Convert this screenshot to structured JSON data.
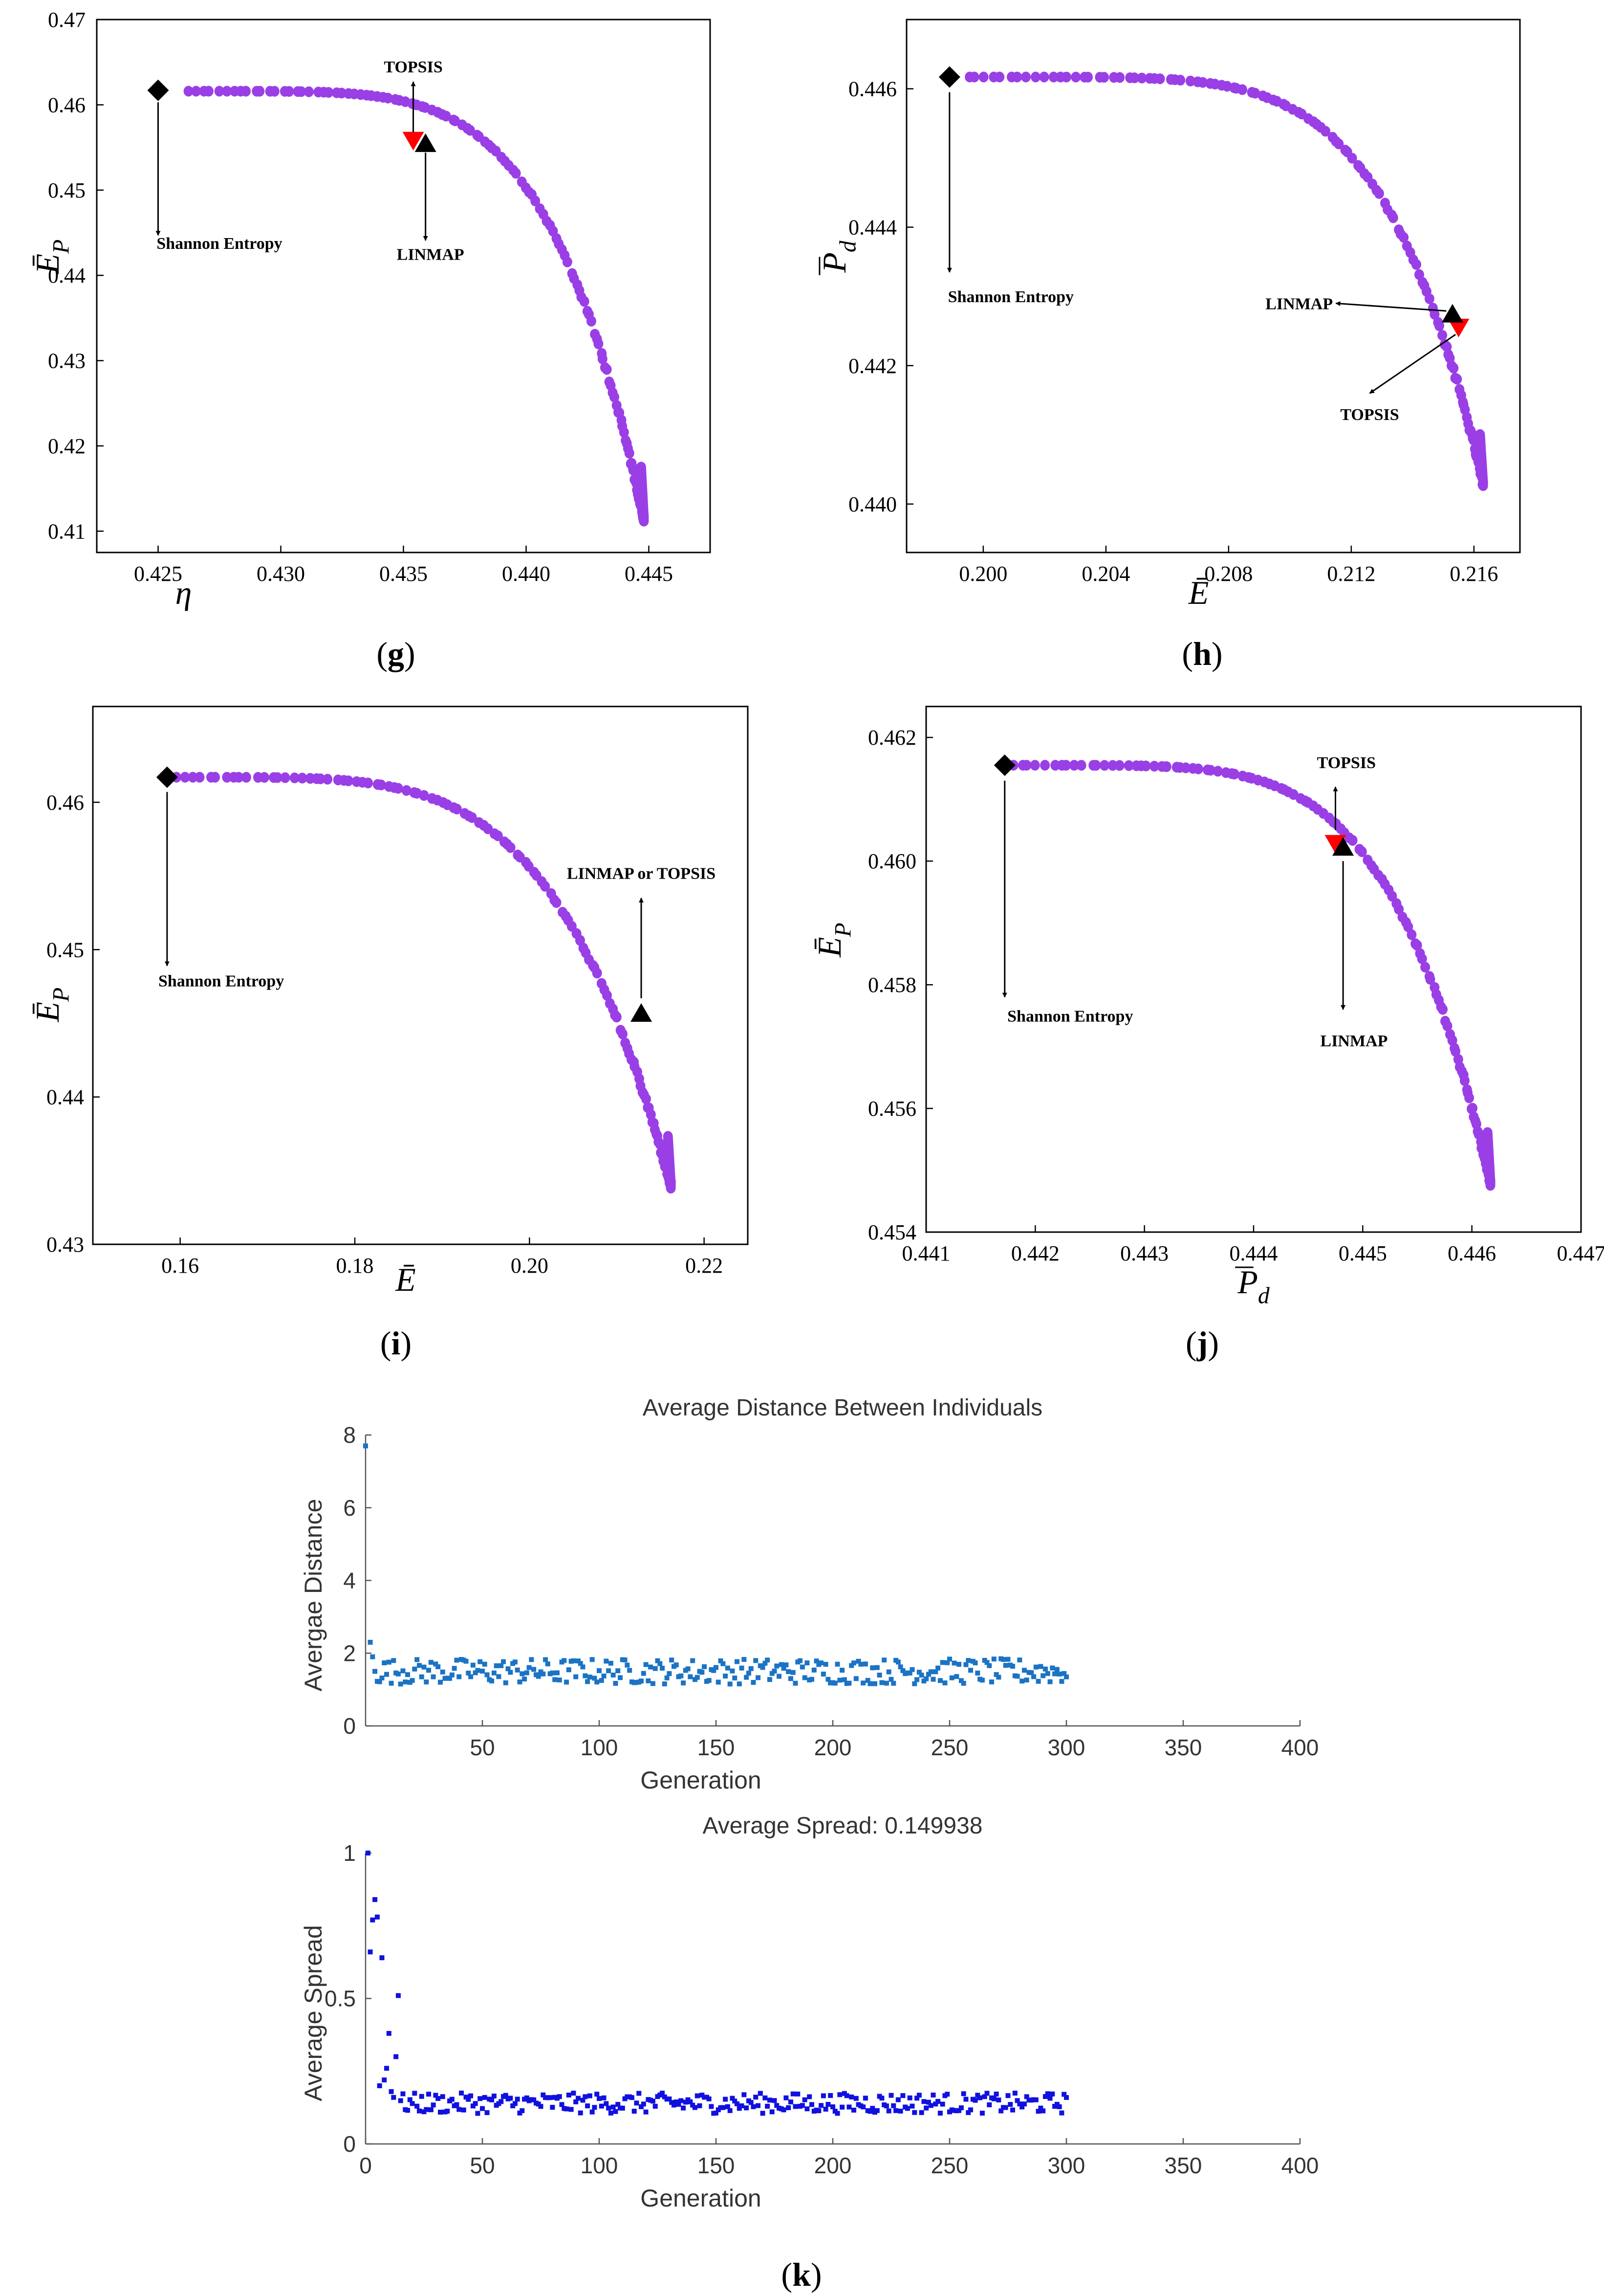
{
  "figure": {
    "colors": {
      "pareto": "#9A3FE6",
      "axis": "#000000",
      "topsis": "#FF0000",
      "linmap": "#000000",
      "shannon": "#000000",
      "ga_avg_distance": "#1B73C4",
      "ga_avg_spread": "#1010E0",
      "ga_axis": "#555555"
    }
  },
  "chart_data": [
    {
      "id": "g",
      "type": "scatter",
      "panel_label": "(g)",
      "xlabel": "η",
      "ylabel": "Ē_P",
      "xlim": [
        0.4225,
        0.4475
      ],
      "ylim": [
        0.4075,
        0.47
      ],
      "x_ticks": [
        "0.425",
        "0.430",
        "0.435",
        "0.440",
        "0.445"
      ],
      "x_tick_values": [
        0.425,
        0.43,
        0.435,
        0.44,
        0.445
      ],
      "y_ticks": [
        "0.41",
        "0.42",
        "0.43",
        "0.44",
        "0.45",
        "0.46",
        "0.47"
      ],
      "y_tick_values": [
        0.41,
        0.42,
        0.43,
        0.44,
        0.45,
        0.46,
        0.47
      ],
      "front": {
        "x_start": 0.4262,
        "x_end": 0.4448,
        "y_start": 0.4616,
        "y_end": 0.4115,
        "curvature": 5.0,
        "n": 130
      },
      "points": {
        "shannon": {
          "x": 0.425,
          "y": 0.4617
        },
        "topsis": {
          "x": 0.4354,
          "y": 0.4558
        },
        "linmap": {
          "x": 0.4359,
          "y": 0.4555
        }
      },
      "annotations": [
        {
          "label": "Shannon Entropy",
          "from": {
            "x": 0.425,
            "y": 0.4603
          },
          "to": {
            "x": 0.425,
            "y": 0.4447
          },
          "text_at": {
            "x": 0.4275,
            "y": 0.4438
          }
        },
        {
          "label": "TOPSIS",
          "from": {
            "x": 0.4354,
            "y": 0.4568
          },
          "to": {
            "x": 0.4354,
            "y": 0.4627
          },
          "text_at": {
            "x": 0.4354,
            "y": 0.4645
          }
        },
        {
          "label": "LINMAP",
          "from": {
            "x": 0.4359,
            "y": 0.4544
          },
          "to": {
            "x": 0.4359,
            "y": 0.4441
          },
          "text_at": {
            "x": 0.4361,
            "y": 0.4425
          }
        }
      ]
    },
    {
      "id": "h",
      "type": "scatter",
      "panel_label": "(h)",
      "xlabel": "Ē",
      "ylabel": "P̄_d",
      "xlim": [
        0.1975,
        0.2175
      ],
      "ylim": [
        0.4393,
        0.447
      ],
      "x_ticks": [
        "0.200",
        "0.204",
        "0.208",
        "0.212",
        "0.216"
      ],
      "x_tick_values": [
        0.2,
        0.204,
        0.208,
        0.212,
        0.216
      ],
      "y_ticks": [
        "0.440",
        "0.442",
        "0.444",
        "0.446"
      ],
      "y_tick_values": [
        0.44,
        0.442,
        0.444,
        0.446
      ],
      "front": {
        "x_start": 0.1995,
        "x_end": 0.2163,
        "y_start": 0.44617,
        "y_end": 0.4403,
        "curvature": 5.5,
        "n": 130
      },
      "points": {
        "shannon": {
          "x": 0.1989,
          "y": 0.44617
        },
        "linmap": {
          "x": 0.2153,
          "y": 0.44275
        },
        "topsis": {
          "x": 0.2155,
          "y": 0.44255
        }
      },
      "annotations": [
        {
          "label": "Shannon Entropy",
          "from": {
            "x": 0.1989,
            "y": 0.44595
          },
          "to": {
            "x": 0.1989,
            "y": 0.44335
          },
          "text_at": {
            "x": 0.2009,
            "y": 0.443
          }
        },
        {
          "label": "LINMAP",
          "from": {
            "x": 0.2151,
            "y": 0.44279
          },
          "to": {
            "x": 0.2115,
            "y": 0.4429
          },
          "text_at": {
            "x": 0.2103,
            "y": 0.4429
          }
        },
        {
          "label": "TOPSIS",
          "from": {
            "x": 0.2154,
            "y": 0.44245
          },
          "to": {
            "x": 0.2126,
            "y": 0.4416
          },
          "text_at": {
            "x": 0.2126,
            "y": 0.4413
          }
        }
      ]
    },
    {
      "id": "i",
      "type": "scatter",
      "panel_label": "(i)",
      "xlabel": "Ē",
      "ylabel": "Ē_P",
      "xlim": [
        0.15,
        0.225
      ],
      "ylim": [
        0.43,
        0.4665
      ],
      "x_ticks": [
        "0.16",
        "0.18",
        "0.20",
        "0.22"
      ],
      "x_tick_values": [
        0.16,
        0.18,
        0.2,
        0.22
      ],
      "y_ticks": [
        "0.43",
        "0.44",
        "0.45",
        "0.46"
      ],
      "y_tick_values": [
        0.43,
        0.44,
        0.45,
        0.46
      ],
      "front": {
        "x_start": 0.1595,
        "x_end": 0.2162,
        "y_start": 0.4617,
        "y_end": 0.434,
        "curvature": 4.5,
        "n": 130
      },
      "points": {
        "shannon": {
          "x": 0.1585,
          "y": 0.4617
        },
        "linmap": {
          "x": 0.2128,
          "y": 0.4457
        }
      },
      "annotations": [
        {
          "label": "Shannon Entropy",
          "from": {
            "x": 0.1585,
            "y": 0.4607
          },
          "to": {
            "x": 0.1585,
            "y": 0.4489
          },
          "text_at": {
            "x": 0.1647,
            "y": 0.4479
          }
        },
        {
          "label": "LINMAP or TOPSIS",
          "from": {
            "x": 0.2128,
            "y": 0.4467
          },
          "to": {
            "x": 0.2128,
            "y": 0.4535
          },
          "text_at": {
            "x": 0.2128,
            "y": 0.4552
          }
        }
      ]
    },
    {
      "id": "j",
      "type": "scatter",
      "panel_label": "(j)",
      "xlabel": "P̄_d",
      "ylabel": "Ē_P",
      "xlim": [
        0.441,
        0.447
      ],
      "ylim": [
        0.454,
        0.4625
      ],
      "x_ticks": [
        "0.441",
        "0.442",
        "0.443",
        "0.444",
        "0.445",
        "0.446",
        "0.447"
      ],
      "x_tick_values": [
        0.441,
        0.442,
        0.443,
        0.444,
        0.445,
        0.446,
        0.447
      ],
      "y_ticks": [
        "0.454",
        "0.456",
        "0.458",
        "0.460",
        "0.462"
      ],
      "y_tick_values": [
        0.454,
        0.456,
        0.458,
        0.46,
        0.462
      ],
      "front": {
        "x_start": 0.4418,
        "x_end": 0.44617,
        "y_start": 0.46155,
        "y_end": 0.4548,
        "curvature": 5.0,
        "n": 130
      },
      "points": {
        "shannon": {
          "x": 0.44172,
          "y": 0.46155
        },
        "topsis": {
          "x": 0.44475,
          "y": 0.46028
        },
        "linmap": {
          "x": 0.44482,
          "y": 0.46023
        }
      },
      "annotations": [
        {
          "label": "Shannon Entropy",
          "from": {
            "x": 0.44172,
            "y": 0.4613
          },
          "to": {
            "x": 0.44172,
            "y": 0.4578
          },
          "text_at": {
            "x": 0.44232,
            "y": 0.4575
          }
        },
        {
          "label": "TOPSIS",
          "from": {
            "x": 0.44475,
            "y": 0.4605
          },
          "to": {
            "x": 0.44475,
            "y": 0.4612
          },
          "text_at": {
            "x": 0.44485,
            "y": 0.4616
          }
        },
        {
          "label": "LINMAP",
          "from": {
            "x": 0.44482,
            "y": 0.46
          },
          "to": {
            "x": 0.44482,
            "y": 0.4576
          },
          "text_at": {
            "x": 0.44492,
            "y": 0.4571
          }
        }
      ]
    },
    {
      "id": "k1",
      "type": "scatter",
      "title": "Average Distance Between Individuals",
      "xlabel": "Generation",
      "ylabel": "Avergae Distance",
      "xlim": [
        0,
        400
      ],
      "ylim": [
        0,
        8
      ],
      "x_ticks": [
        "50",
        "100",
        "150",
        "200",
        "250",
        "300",
        "350",
        "400"
      ],
      "x_tick_values": [
        50,
        100,
        150,
        200,
        250,
        300,
        350,
        400
      ],
      "y_ticks": [
        "0",
        "2",
        "4",
        "6",
        "8"
      ],
      "y_tick_values": [
        0,
        2,
        4,
        6,
        8
      ],
      "series": {
        "name": "Average distance",
        "generations": [
          1,
          300
        ],
        "first_values": [
          7.7,
          2.3,
          1.9,
          1.5
        ],
        "mean": 1.5,
        "amplitude": 0.35
      }
    },
    {
      "id": "k2",
      "type": "scatter",
      "title": "Average Spread: 0.149938",
      "xlabel": "Generation",
      "ylabel": "Average Spread",
      "xlim": [
        0,
        400
      ],
      "ylim": [
        0,
        1
      ],
      "x_ticks": [
        "0",
        "50",
        "100",
        "150",
        "200",
        "250",
        "300",
        "350",
        "400"
      ],
      "x_tick_values": [
        0,
        50,
        100,
        150,
        200,
        250,
        300,
        350,
        400
      ],
      "y_ticks": [
        "0",
        "0.5",
        "1"
      ],
      "y_tick_values": [
        0,
        0.5,
        1
      ],
      "series": {
        "name": "Average spread",
        "generations": [
          1,
          300
        ],
        "first_values": [
          1.0,
          0.66,
          0.77,
          0.84,
          0.78,
          0.2,
          0.64,
          0.22,
          0.26,
          0.38,
          0.18,
          0.16,
          0.3,
          0.51
        ],
        "mean": 0.14,
        "amplitude": 0.035
      },
      "panel_label": "(k)"
    }
  ]
}
